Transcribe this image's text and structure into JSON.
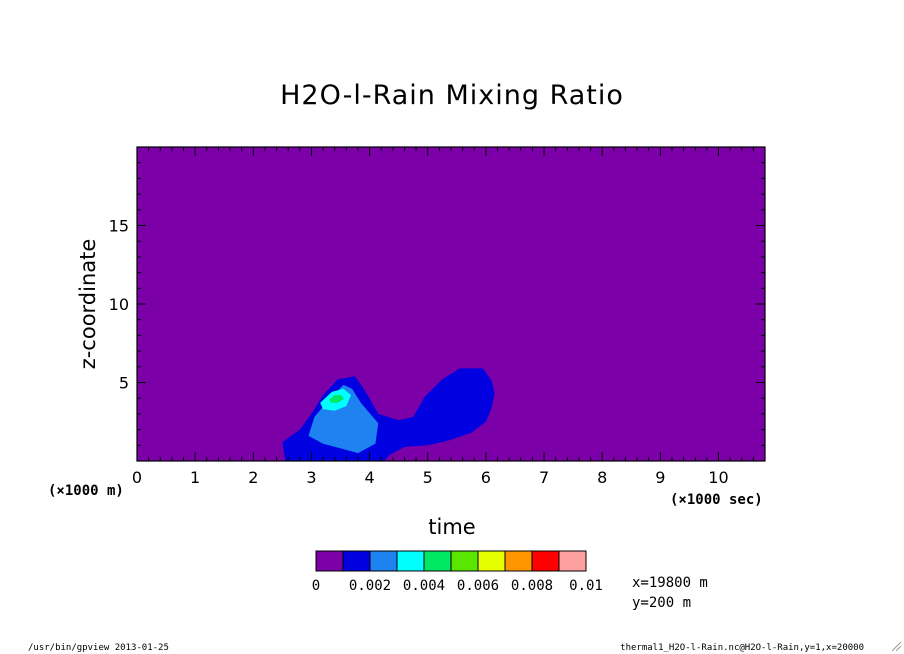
{
  "chart_data": {
    "type": "heatmap",
    "title": "H2O-l-Rain Mixing Ratio",
    "xlabel": "time",
    "ylabel": "z-coordinate",
    "x_unit_label": "(×1000 sec)",
    "y_unit_label": "(×1000 m)",
    "xlim": [
      0,
      10.8
    ],
    "ylim": [
      0,
      20
    ],
    "x_ticks": [
      "0",
      "1",
      "2",
      "3",
      "4",
      "5",
      "6",
      "7",
      "8",
      "9",
      "10"
    ],
    "y_ticks": [
      "5",
      "10",
      "15"
    ],
    "colorbar": {
      "levels": [
        0,
        0.001,
        0.002,
        0.003,
        0.004,
        0.005,
        0.006,
        0.007,
        0.008,
        0.009,
        0.01
      ],
      "labels": [
        "0",
        "0.002",
        "0.004",
        "0.006",
        "0.008",
        "0.01"
      ],
      "colors": [
        "#7b00a8",
        "#0000e0",
        "#1e82f0",
        "#00ffff",
        "#00e864",
        "#5ae600",
        "#e6ff00",
        "#ff9600",
        "#ff0000",
        "#ffa0a0"
      ]
    },
    "regions": [
      {
        "level": 1,
        "points": [
          [
            2.55,
            0
          ],
          [
            2.5,
            1.2
          ],
          [
            2.8,
            2.0
          ],
          [
            3.0,
            3.0
          ],
          [
            3.2,
            4.2
          ],
          [
            3.45,
            5.2
          ],
          [
            3.75,
            5.4
          ],
          [
            3.95,
            4.3
          ],
          [
            4.15,
            3.0
          ],
          [
            4.5,
            2.6
          ],
          [
            4.75,
            2.8
          ],
          [
            4.95,
            4.1
          ],
          [
            5.25,
            5.2
          ],
          [
            5.55,
            5.9
          ],
          [
            5.95,
            5.9
          ],
          [
            6.1,
            5.1
          ],
          [
            6.15,
            4.3
          ],
          [
            6.1,
            3.4
          ],
          [
            6.0,
            2.5
          ],
          [
            5.75,
            1.8
          ],
          [
            5.35,
            1.3
          ],
          [
            5.0,
            1.0
          ],
          [
            4.6,
            0.9
          ],
          [
            4.35,
            0.4
          ],
          [
            4.25,
            0
          ]
        ]
      },
      {
        "level": 2,
        "points": [
          [
            2.95,
            1.6
          ],
          [
            3.05,
            2.8
          ],
          [
            3.3,
            3.9
          ],
          [
            3.55,
            4.85
          ],
          [
            3.7,
            4.6
          ],
          [
            3.85,
            3.7
          ],
          [
            4.15,
            2.4
          ],
          [
            4.1,
            1.1
          ],
          [
            3.8,
            0.5
          ],
          [
            3.5,
            0.8
          ],
          [
            3.2,
            1.1
          ]
        ]
      },
      {
        "level": 3,
        "points": [
          [
            3.15,
            3.7
          ],
          [
            3.35,
            4.4
          ],
          [
            3.55,
            4.6
          ],
          [
            3.68,
            4.2
          ],
          [
            3.6,
            3.5
          ],
          [
            3.4,
            3.2
          ],
          [
            3.2,
            3.3
          ]
        ]
      },
      {
        "level": 4,
        "points": [
          [
            3.3,
            3.9
          ],
          [
            3.4,
            4.2
          ],
          [
            3.52,
            4.2
          ],
          [
            3.56,
            3.95
          ],
          [
            3.45,
            3.7
          ],
          [
            3.33,
            3.72
          ]
        ]
      }
    ]
  },
  "annotations": {
    "x_position": "x=19800 m",
    "y_position": "y=200 m"
  },
  "footer": {
    "left": "/usr/bin/gpview  2013-01-25",
    "right": "thermal1_H2O-l-Rain.nc@H2O-l-Rain,y=1,x=20000"
  }
}
